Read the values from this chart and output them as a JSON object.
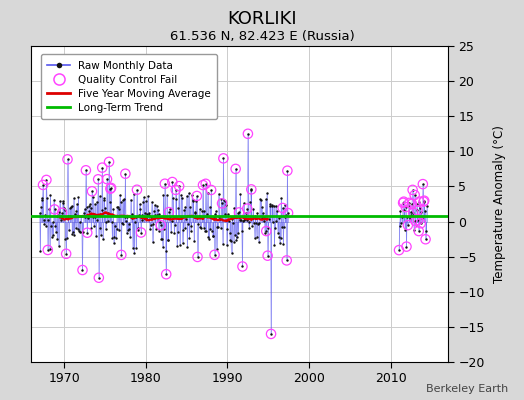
{
  "title": "KORLIKI",
  "subtitle": "61.536 N, 82.423 E (Russia)",
  "ylabel": "Temperature Anomaly (°C)",
  "credit": "Berkeley Earth",
  "ylim": [
    -20,
    25
  ],
  "yticks": [
    -20,
    -15,
    -10,
    -5,
    0,
    5,
    10,
    15,
    20,
    25
  ],
  "xlim": [
    1966,
    2017
  ],
  "xticks": [
    1970,
    1980,
    1990,
    2000,
    2010
  ],
  "bg_color": "#d8d8d8",
  "plot_bg_color": "#ffffff",
  "raw_line_color": "#5555ee",
  "raw_dot_color": "#111111",
  "qc_fail_color": "#ff44ff",
  "moving_avg_color": "#dd0000",
  "trend_color": "#00bb00",
  "grid_color": "#cccccc",
  "legend_items": [
    "Raw Monthly Data",
    "Quality Control Fail",
    "Five Year Moving Average",
    "Long-Term Trend"
  ],
  "seg1_start": 1967.0,
  "seg1_end": 1997.5,
  "seg2_start": 2011.0,
  "seg2_end": 2014.5
}
